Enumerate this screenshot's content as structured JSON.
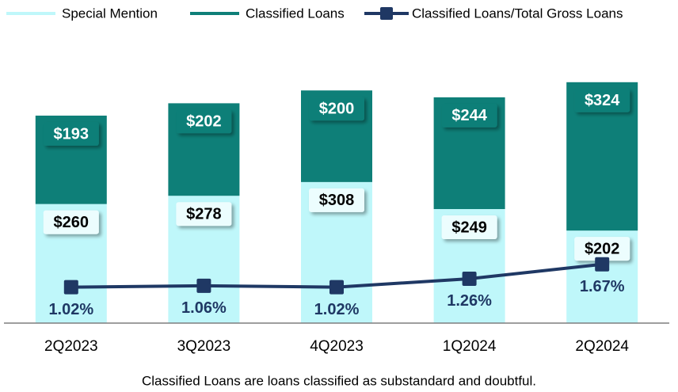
{
  "chart_data": {
    "type": "bar",
    "stacked": true,
    "categories": [
      "2Q2023",
      "3Q2023",
      "4Q2023",
      "1Q2024",
      "2Q2024"
    ],
    "series": [
      {
        "name": "Special Mention",
        "color": "#bff7fa",
        "values": [
          260,
          278,
          308,
          249,
          202
        ],
        "value_labels": [
          "$260",
          "$278",
          "$308",
          "$249",
          "$202"
        ]
      },
      {
        "name": "Classified Loans",
        "color": "#0e7f78",
        "values": [
          193,
          202,
          200,
          244,
          324
        ],
        "value_labels": [
          "$193",
          "$202",
          "$200",
          "$244",
          "$324"
        ]
      },
      {
        "name": "Classified Loans/Total Gross Loans",
        "type": "line",
        "axis": "y2",
        "color": "#1f3864",
        "values": [
          1.02,
          1.06,
          1.02,
          1.26,
          1.67
        ],
        "value_labels": [
          "1.02%",
          "1.06%",
          "1.02%",
          "1.26%",
          "1.67%"
        ]
      }
    ],
    "ylim": [
      0,
      600
    ],
    "y2lim": [
      0,
      7.8
    ],
    "legend": "top-left",
    "footnote": "Classified Loans are loans classified as substandard and doubtful."
  }
}
